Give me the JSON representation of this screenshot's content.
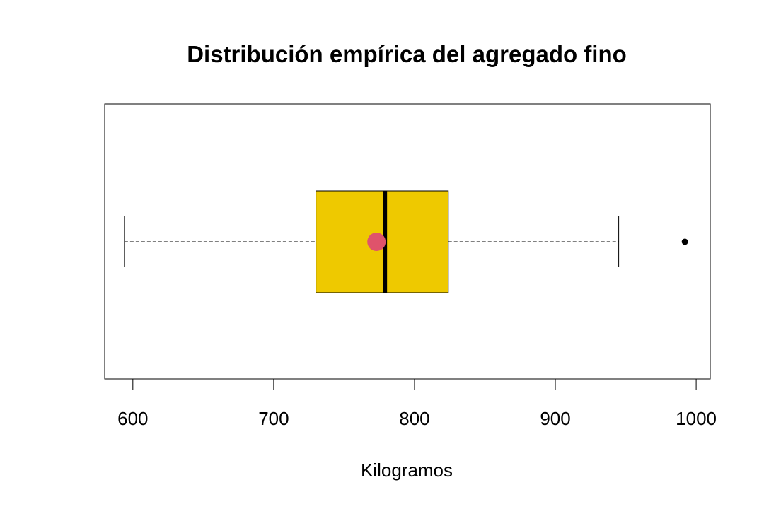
{
  "chart_data": {
    "type": "boxplot",
    "orientation": "horizontal",
    "title": "Distribución empírica del agregado fino",
    "xlabel": "Kilogramos",
    "ylabel": "",
    "xlim": [
      580,
      1010
    ],
    "ticks": [
      600,
      700,
      800,
      900,
      1000
    ],
    "tick_labels": [
      "600",
      "700",
      "800",
      "900",
      "1000"
    ],
    "whisker_low": 594,
    "q1": 730,
    "median": 779,
    "q3": 824,
    "whisker_high": 945,
    "mean": 773,
    "outliers": [
      992
    ],
    "colors": {
      "box_fill": "#EEC900",
      "mean_marker": "#DF536B",
      "median_line": "#000000",
      "outlier": "#000000"
    }
  }
}
